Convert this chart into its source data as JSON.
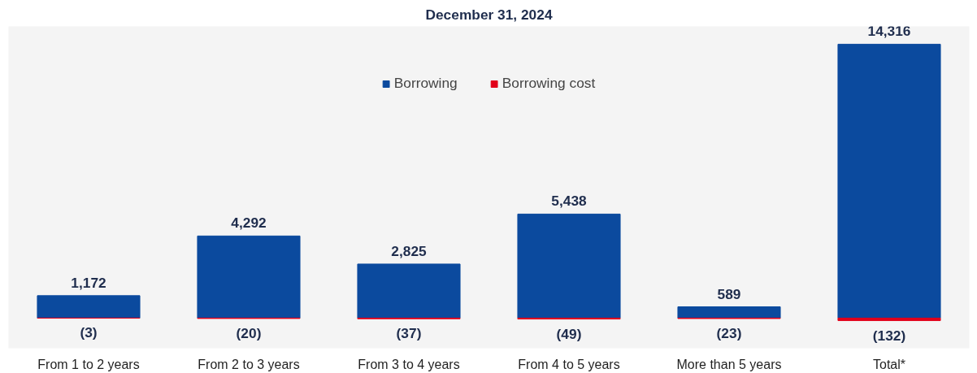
{
  "chart_data": {
    "type": "bar",
    "title": "December 31, 2024",
    "legend": "top",
    "grid": false,
    "categories": [
      "From 1 to 2 years",
      "From 2 to 3 years",
      "From 3 to 4 years",
      "From 4 to 5 years",
      "More than 5 years",
      "Total*"
    ],
    "series": [
      {
        "name": "Borrowing",
        "color": "#0b4a9e",
        "values": [
          1172,
          4292,
          2825,
          5438,
          589,
          14316
        ],
        "value_labels": [
          "1,172",
          "4,292",
          "2,825",
          "5,438",
          "589",
          "14,316"
        ]
      },
      {
        "name": "Borrowing cost",
        "color": "#e2001a",
        "values": [
          -3,
          -20,
          -37,
          -49,
          -23,
          -132
        ],
        "value_labels": [
          "(3)",
          "(20)",
          "(37)",
          "(49)",
          "(23)",
          "(132)"
        ]
      }
    ]
  }
}
